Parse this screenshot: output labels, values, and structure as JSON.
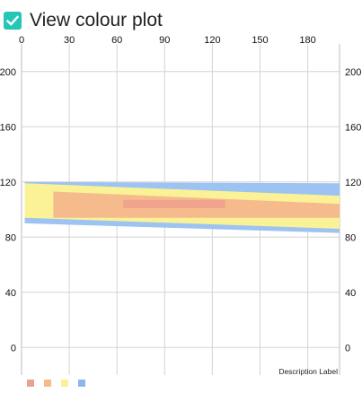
{
  "checkbox": {
    "label": "View colour plot",
    "checked": true,
    "color": "#26c6b7"
  },
  "chart_data": {
    "type": "heatmap",
    "title": "",
    "xlabel": "",
    "ylabel": "",
    "xlim": [
      0,
      200
    ],
    "ylim": [
      -20,
      220
    ],
    "x_ticks": [
      0,
      30,
      60,
      90,
      120,
      150,
      180
    ],
    "y_ticks": [
      0,
      40,
      80,
      120,
      160,
      200
    ],
    "x_axis_position": "top",
    "y_axis_position": "both",
    "grid": true,
    "description_label": "Description Label",
    "legend_colors": [
      "#e8a092",
      "#f6bb8d",
      "#fbf197",
      "#8ab6f0"
    ],
    "legend_position": "bottom-left",
    "bands": [
      {
        "level": 4,
        "color": "#9cc3f2",
        "x_start": 2,
        "x_end": 200,
        "y_low_start": 90,
        "y_low_end": 83,
        "y_high_start": 120,
        "y_high_end": 119
      },
      {
        "level": 3,
        "color": "#fbf197",
        "x_start": 2,
        "x_end": 200,
        "y_low_start": 94,
        "y_low_end": 86,
        "y_high_start": 119,
        "y_high_end": 110
      },
      {
        "level": 2,
        "color": "#f6bb8d",
        "x_start": 20,
        "x_end": 200,
        "y_low_start": 94,
        "y_low_end": 94,
        "y_high_start": 113,
        "y_high_end": 104
      },
      {
        "level": 1,
        "color": "#f0a48e",
        "x_start": 64,
        "x_end": 128,
        "y_low_start": 101,
        "y_low_end": 101,
        "y_high_start": 107,
        "y_high_end": 107
      }
    ]
  }
}
